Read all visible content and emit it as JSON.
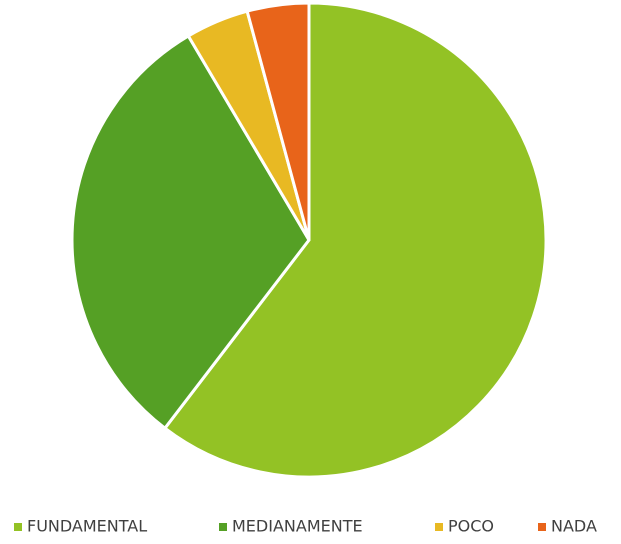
{
  "chart_data": {
    "type": "pie",
    "categories": [
      "FUNDAMENTAL",
      "MEDIANAMENTE",
      "POCO",
      "NADA"
    ],
    "values": [
      60.4,
      31.1,
      4.3,
      4.2
    ],
    "colors": [
      "#93c225",
      "#55a025",
      "#e8b923",
      "#e8641a"
    ],
    "legend": "bottom"
  }
}
